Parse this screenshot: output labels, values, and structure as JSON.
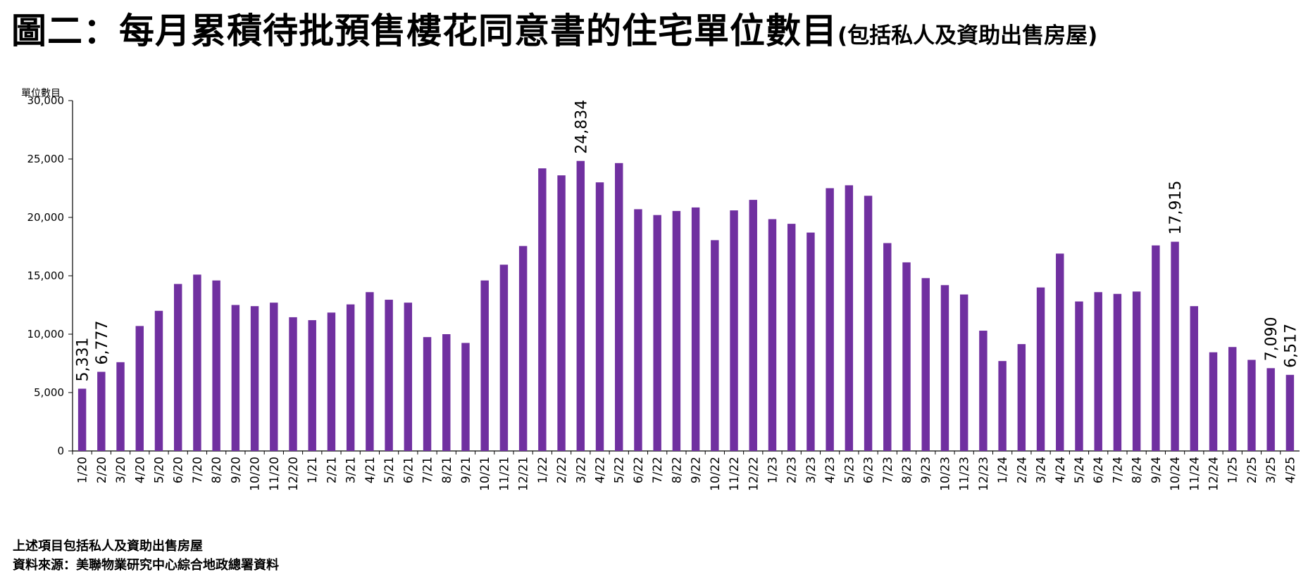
{
  "title": "圖二：每月累積待批預售樓花同意書的住宅單位數目",
  "subtitle": "(包括私人及資助出售房屋)",
  "footnotes": [
    "上述項目包括私人及資助出售房屋",
    "資料來源：美聯物業研究中心綜合地政總署資料"
  ],
  "colors": {
    "bar": "#7030a0",
    "axis": "#000000"
  },
  "chart_data": {
    "type": "bar",
    "ylabel": "單位數目",
    "xlabel": "",
    "ylim": [
      0,
      30000
    ],
    "yticks": [
      0,
      5000,
      10000,
      15000,
      20000,
      25000,
      30000
    ],
    "ytick_labels": [
      "0",
      "5,000",
      "10,000",
      "15,000",
      "20,000",
      "25,000",
      "30,000"
    ],
    "grid": false,
    "legend": "none",
    "categories": [
      "1/20",
      "2/20",
      "3/20",
      "4/20",
      "5/20",
      "6/20",
      "7/20",
      "8/20",
      "9/20",
      "10/20",
      "11/20",
      "12/20",
      "1/21",
      "2/21",
      "3/21",
      "4/21",
      "5/21",
      "6/21",
      "7/21",
      "8/21",
      "9/21",
      "10/21",
      "11/21",
      "12/21",
      "1/22",
      "2/22",
      "3/22",
      "4/22",
      "5/22",
      "6/22",
      "7/22",
      "8/22",
      "9/22",
      "10/22",
      "11/22",
      "12/22",
      "1/23",
      "2/23",
      "3/23",
      "4/23",
      "5/23",
      "6/23",
      "7/23",
      "8/23",
      "9/23",
      "10/23",
      "11/23",
      "12/23",
      "1/24",
      "2/24",
      "3/24",
      "4/24",
      "5/24",
      "6/24",
      "7/24",
      "8/24",
      "9/24",
      "10/24",
      "11/24",
      "12/24",
      "1/25",
      "2/25",
      "3/25",
      "4/25"
    ],
    "values": [
      5331,
      6777,
      7600,
      10700,
      12000,
      14300,
      15100,
      14600,
      12500,
      12400,
      12700,
      11450,
      11200,
      11850,
      12550,
      13600,
      12950,
      12700,
      9750,
      10000,
      9250,
      14600,
      15950,
      17550,
      24200,
      23600,
      24834,
      23000,
      24650,
      20700,
      20200,
      20550,
      20850,
      18050,
      20600,
      21500,
      19850,
      19450,
      18700,
      22500,
      22750,
      21850,
      17800,
      16150,
      14800,
      14200,
      13400,
      10300,
      7700,
      9150,
      14000,
      16900,
      12800,
      13600,
      13450,
      13650,
      17600,
      17915,
      12400,
      8450,
      8900,
      7800,
      7090,
      6517
    ],
    "data_labels": [
      {
        "index": 0,
        "text": "5,331"
      },
      {
        "index": 1,
        "text": "6,777"
      },
      {
        "index": 26,
        "text": "24,834"
      },
      {
        "index": 57,
        "text": "17,915"
      },
      {
        "index": 62,
        "text": "7,090"
      },
      {
        "index": 63,
        "text": "6,517"
      }
    ]
  }
}
